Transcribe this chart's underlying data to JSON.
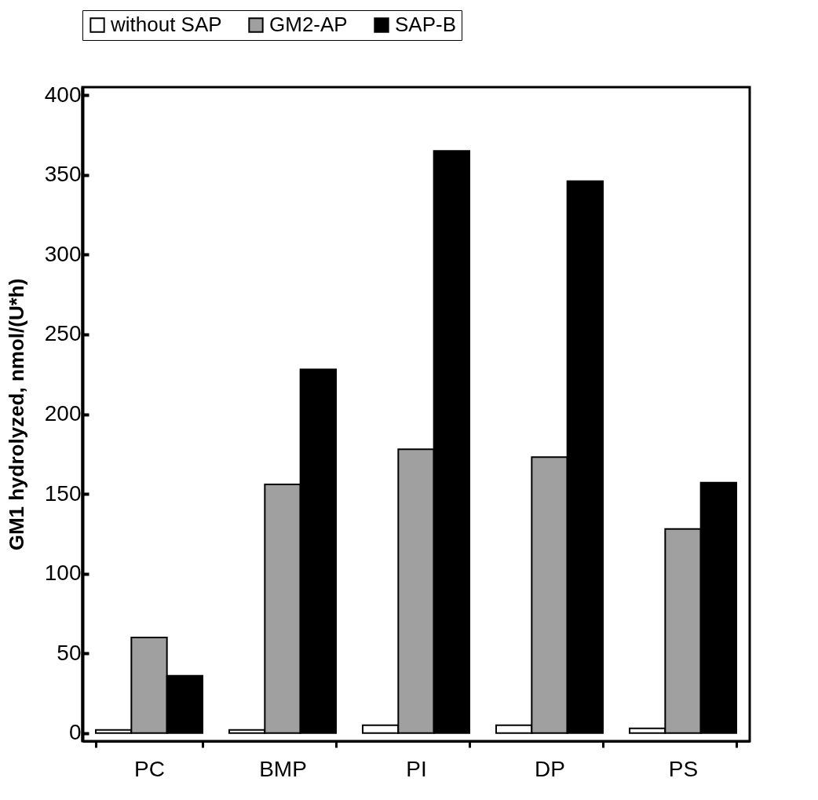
{
  "chart_data": {
    "type": "bar",
    "ylabel": "GM1 hydrolyzed, nmol/(U*h)",
    "categories": [
      "PC",
      "BMP",
      "PI",
      "DP",
      "PS"
    ],
    "series": [
      {
        "name": "without SAP",
        "color": "#ffffff",
        "values": [
          2,
          2,
          5,
          5,
          3
        ]
      },
      {
        "name": "GM2-AP",
        "color": "#a0a0a0",
        "values": [
          60,
          156,
          178,
          173,
          128
        ]
      },
      {
        "name": "SAP-B",
        "color": "#000000",
        "values": [
          36,
          228,
          365,
          346,
          157
        ]
      }
    ],
    "ylim": [
      -5,
      405
    ],
    "yticks": [
      0,
      50,
      100,
      150,
      200,
      250,
      300,
      350,
      400
    ],
    "legend": "top",
    "grid": false
  }
}
